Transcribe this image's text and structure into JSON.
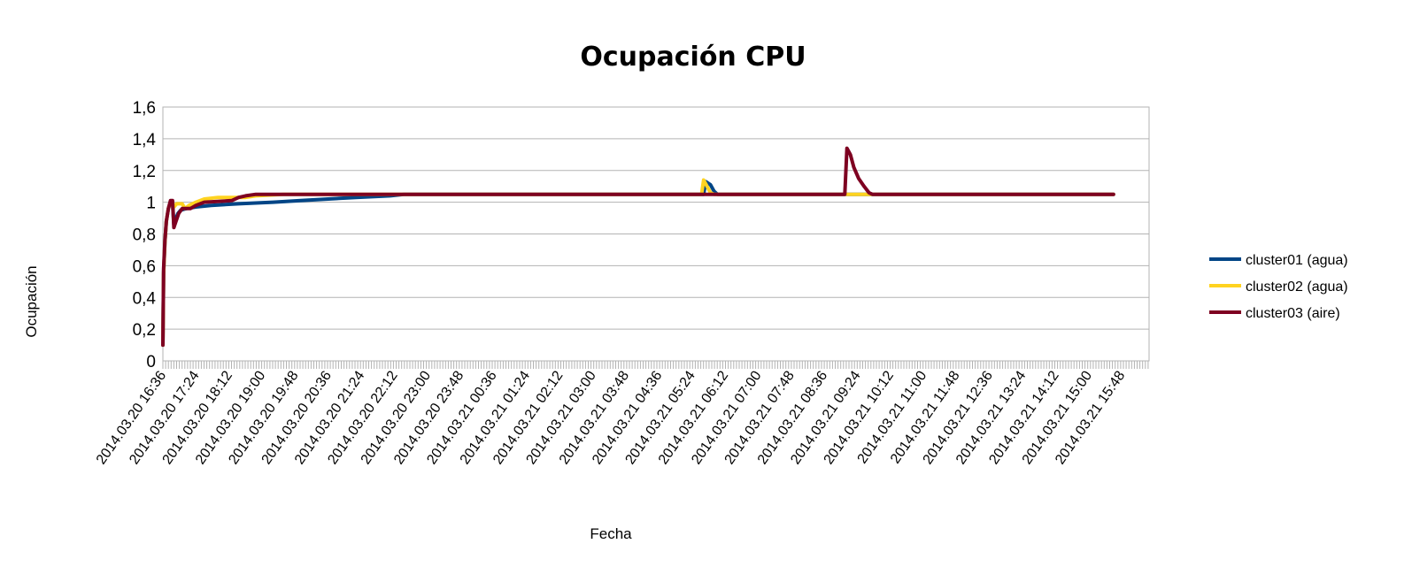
{
  "chart_data": {
    "type": "line",
    "title": "Ocupación CPU",
    "xlabel": "Fecha",
    "ylabel": "Ocupación",
    "ylim": [
      0,
      1.6
    ],
    "y_ticks": [
      "0",
      "0,2",
      "0,4",
      "0,6",
      "0,8",
      "1",
      "1,2",
      "1,4",
      "1,6"
    ],
    "y_tick_values": [
      0,
      0.2,
      0.4,
      0.6,
      0.8,
      1.0,
      1.2,
      1.4,
      1.6
    ],
    "x_ticks": [
      "2014.03.20 16:36",
      "2014.03.20 17:24",
      "2014.03.20 18:12",
      "2014.03.20 19:00",
      "2014.03.20 19:48",
      "2014.03.20 20:36",
      "2014.03.20 21:24",
      "2014.03.20 22:12",
      "2014.03.20 23:00",
      "2014.03.20 23:48",
      "2014.03.21 00:36",
      "2014.03.21 01:24",
      "2014.03.21 02:12",
      "2014.03.21 03:00",
      "2014.03.21 03:48",
      "2014.03.21 04:36",
      "2014.03.21 05:24",
      "2014.03.21 06:12",
      "2014.03.21 07:00",
      "2014.03.21 07:48",
      "2014.03.21 08:36",
      "2014.03.21 09:24",
      "2014.03.21 10:12",
      "2014.03.21 11:00",
      "2014.03.21 11:48",
      "2014.03.21 12:36",
      "2014.03.21 13:24",
      "2014.03.21 14:12",
      "2014.03.21 15:00",
      "2014.03.21 15:48"
    ],
    "x_unit": "minutes after 2014.03.20 16:36",
    "grid": true,
    "legend_position": "right",
    "series": [
      {
        "name": "cluster01 (agua)",
        "color": "#004586",
        "points": [
          [
            0,
            0.1
          ],
          [
            1,
            0.55
          ],
          [
            3,
            0.75
          ],
          [
            5,
            0.88
          ],
          [
            8,
            0.96
          ],
          [
            11,
            1.0
          ],
          [
            14,
            1.0
          ],
          [
            16,
            0.86
          ],
          [
            19,
            0.9
          ],
          [
            22,
            0.93
          ],
          [
            26,
            0.95
          ],
          [
            34,
            0.96
          ],
          [
            48,
            0.97
          ],
          [
            70,
            0.98
          ],
          [
            110,
            0.99
          ],
          [
            160,
            1.0
          ],
          [
            200,
            1.01
          ],
          [
            240,
            1.02
          ],
          [
            280,
            1.03
          ],
          [
            330,
            1.04
          ],
          [
            350,
            1.05
          ],
          [
            785,
            1.05
          ],
          [
            788,
            1.13
          ],
          [
            795,
            1.11
          ],
          [
            800,
            1.07
          ],
          [
            805,
            1.05
          ],
          [
            1380,
            1.05
          ]
        ]
      },
      {
        "name": "cluster02 (agua)",
        "color": "#ffd320",
        "points": [
          [
            0,
            0.1
          ],
          [
            1,
            0.55
          ],
          [
            3,
            0.75
          ],
          [
            5,
            0.88
          ],
          [
            8,
            0.96
          ],
          [
            11,
            1.0
          ],
          [
            14,
            1.0
          ],
          [
            16,
            0.97
          ],
          [
            20,
            0.99
          ],
          [
            28,
            0.99
          ],
          [
            32,
            0.96
          ],
          [
            38,
            0.98
          ],
          [
            48,
            1.0
          ],
          [
            60,
            1.02
          ],
          [
            80,
            1.03
          ],
          [
            120,
            1.03
          ],
          [
            135,
            1.04
          ],
          [
            175,
            1.05
          ],
          [
            782,
            1.05
          ],
          [
            785,
            1.14
          ],
          [
            790,
            1.1
          ],
          [
            795,
            1.06
          ],
          [
            800,
            1.05
          ],
          [
            1380,
            1.05
          ]
        ]
      },
      {
        "name": "cluster03 (aire)",
        "color": "#7e0021",
        "points": [
          [
            0,
            0.1
          ],
          [
            1,
            0.58
          ],
          [
            3,
            0.76
          ],
          [
            5,
            0.88
          ],
          [
            8,
            0.96
          ],
          [
            11,
            1.01
          ],
          [
            14,
            1.01
          ],
          [
            16,
            0.84
          ],
          [
            19,
            0.88
          ],
          [
            23,
            0.93
          ],
          [
            28,
            0.96
          ],
          [
            40,
            0.96
          ],
          [
            48,
            0.98
          ],
          [
            60,
            1.0
          ],
          [
            100,
            1.01
          ],
          [
            110,
            1.03
          ],
          [
            120,
            1.04
          ],
          [
            135,
            1.05
          ],
          [
            990,
            1.05
          ],
          [
            993,
            1.34
          ],
          [
            998,
            1.3
          ],
          [
            1003,
            1.22
          ],
          [
            1010,
            1.15
          ],
          [
            1018,
            1.1
          ],
          [
            1025,
            1.06
          ],
          [
            1030,
            1.05
          ],
          [
            1380,
            1.05
          ]
        ]
      }
    ]
  }
}
